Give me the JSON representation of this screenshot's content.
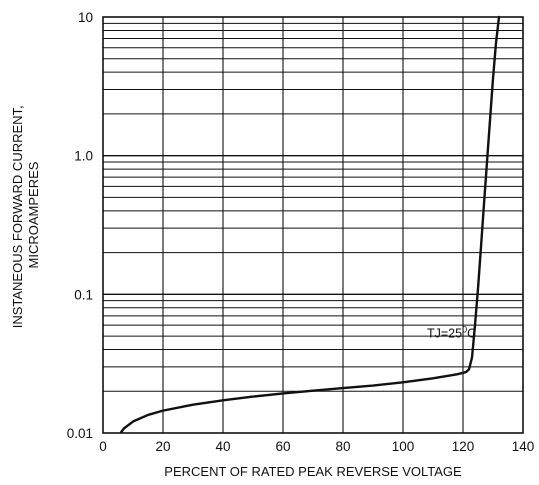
{
  "chart_data": {
    "type": "line",
    "title": "",
    "xlabel": "PERCENT OF RATED PEAK REVERSE VOLTAGE",
    "ylabel_lines": [
      "INSTANEOUS FORWARD CURRENT,",
      "MICROAMPERES"
    ],
    "x_scale": "linear",
    "y_scale": "log",
    "xlim": [
      0,
      140
    ],
    "ylim": [
      0.01,
      10
    ],
    "x_ticks": [
      0,
      20,
      40,
      60,
      80,
      100,
      120,
      140
    ],
    "x_tick_labels": [
      "0",
      "20",
      "40",
      "60",
      "80",
      "100",
      "120",
      "140"
    ],
    "y_ticks": [
      0.01,
      0.1,
      1.0,
      10
    ],
    "y_tick_labels": [
      "0.01",
      "0.1",
      "1.0",
      "10"
    ],
    "grid": true,
    "annotation": {
      "text_base": "TJ=25",
      "text_sup": "0",
      "text_unit": "C",
      "x": 108,
      "y": 0.052
    },
    "series": [
      {
        "x": [
          6,
          7,
          10,
          15,
          20,
          30,
          40,
          50,
          60,
          70,
          80,
          90,
          100,
          110,
          118,
          121,
          122,
          123,
          124,
          125,
          126,
          127,
          128,
          129,
          130,
          131,
          132
        ],
        "y": [
          0.0101,
          0.0108,
          0.0121,
          0.0135,
          0.0145,
          0.016,
          0.0172,
          0.0183,
          0.0193,
          0.0202,
          0.0211,
          0.022,
          0.0232,
          0.0248,
          0.0265,
          0.0275,
          0.0288,
          0.035,
          0.06,
          0.11,
          0.22,
          0.45,
          0.9,
          1.8,
          3.6,
          6.5,
          10
        ]
      }
    ]
  }
}
